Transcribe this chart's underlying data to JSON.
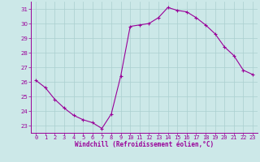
{
  "hours": [
    0,
    1,
    2,
    3,
    4,
    5,
    6,
    7,
    8,
    9,
    10,
    11,
    12,
    13,
    14,
    15,
    16,
    17,
    18,
    19,
    20,
    21,
    22,
    23
  ],
  "values": [
    26.1,
    25.6,
    24.8,
    24.2,
    23.7,
    23.4,
    23.2,
    22.8,
    23.8,
    26.4,
    29.8,
    29.9,
    30.0,
    30.4,
    31.1,
    30.9,
    30.8,
    30.4,
    29.9,
    29.3,
    28.4,
    27.8,
    26.8,
    26.5
  ],
  "line_color": "#990099",
  "marker": "+",
  "marker_size": 3,
  "bg_color": "#cce8e8",
  "grid_color": "#aacfcf",
  "xlabel": "Windchill (Refroidissement éolien,°C)",
  "xlabel_color": "#990099",
  "tick_color": "#990099",
  "ylim": [
    22.5,
    31.5
  ],
  "xlim": [
    -0.5,
    23.5
  ],
  "yticks": [
    23,
    24,
    25,
    26,
    27,
    28,
    29,
    30,
    31
  ],
  "xticks": [
    0,
    1,
    2,
    3,
    4,
    5,
    6,
    7,
    8,
    9,
    10,
    11,
    12,
    13,
    14,
    15,
    16,
    17,
    18,
    19,
    20,
    21,
    22,
    23
  ],
  "xtick_labels": [
    "0",
    "1",
    "2",
    "3",
    "4",
    "5",
    "6",
    "7",
    "8",
    "9",
    "10",
    "11",
    "12",
    "13",
    "14",
    "15",
    "16",
    "17",
    "18",
    "19",
    "20",
    "21",
    "22",
    "23"
  ]
}
